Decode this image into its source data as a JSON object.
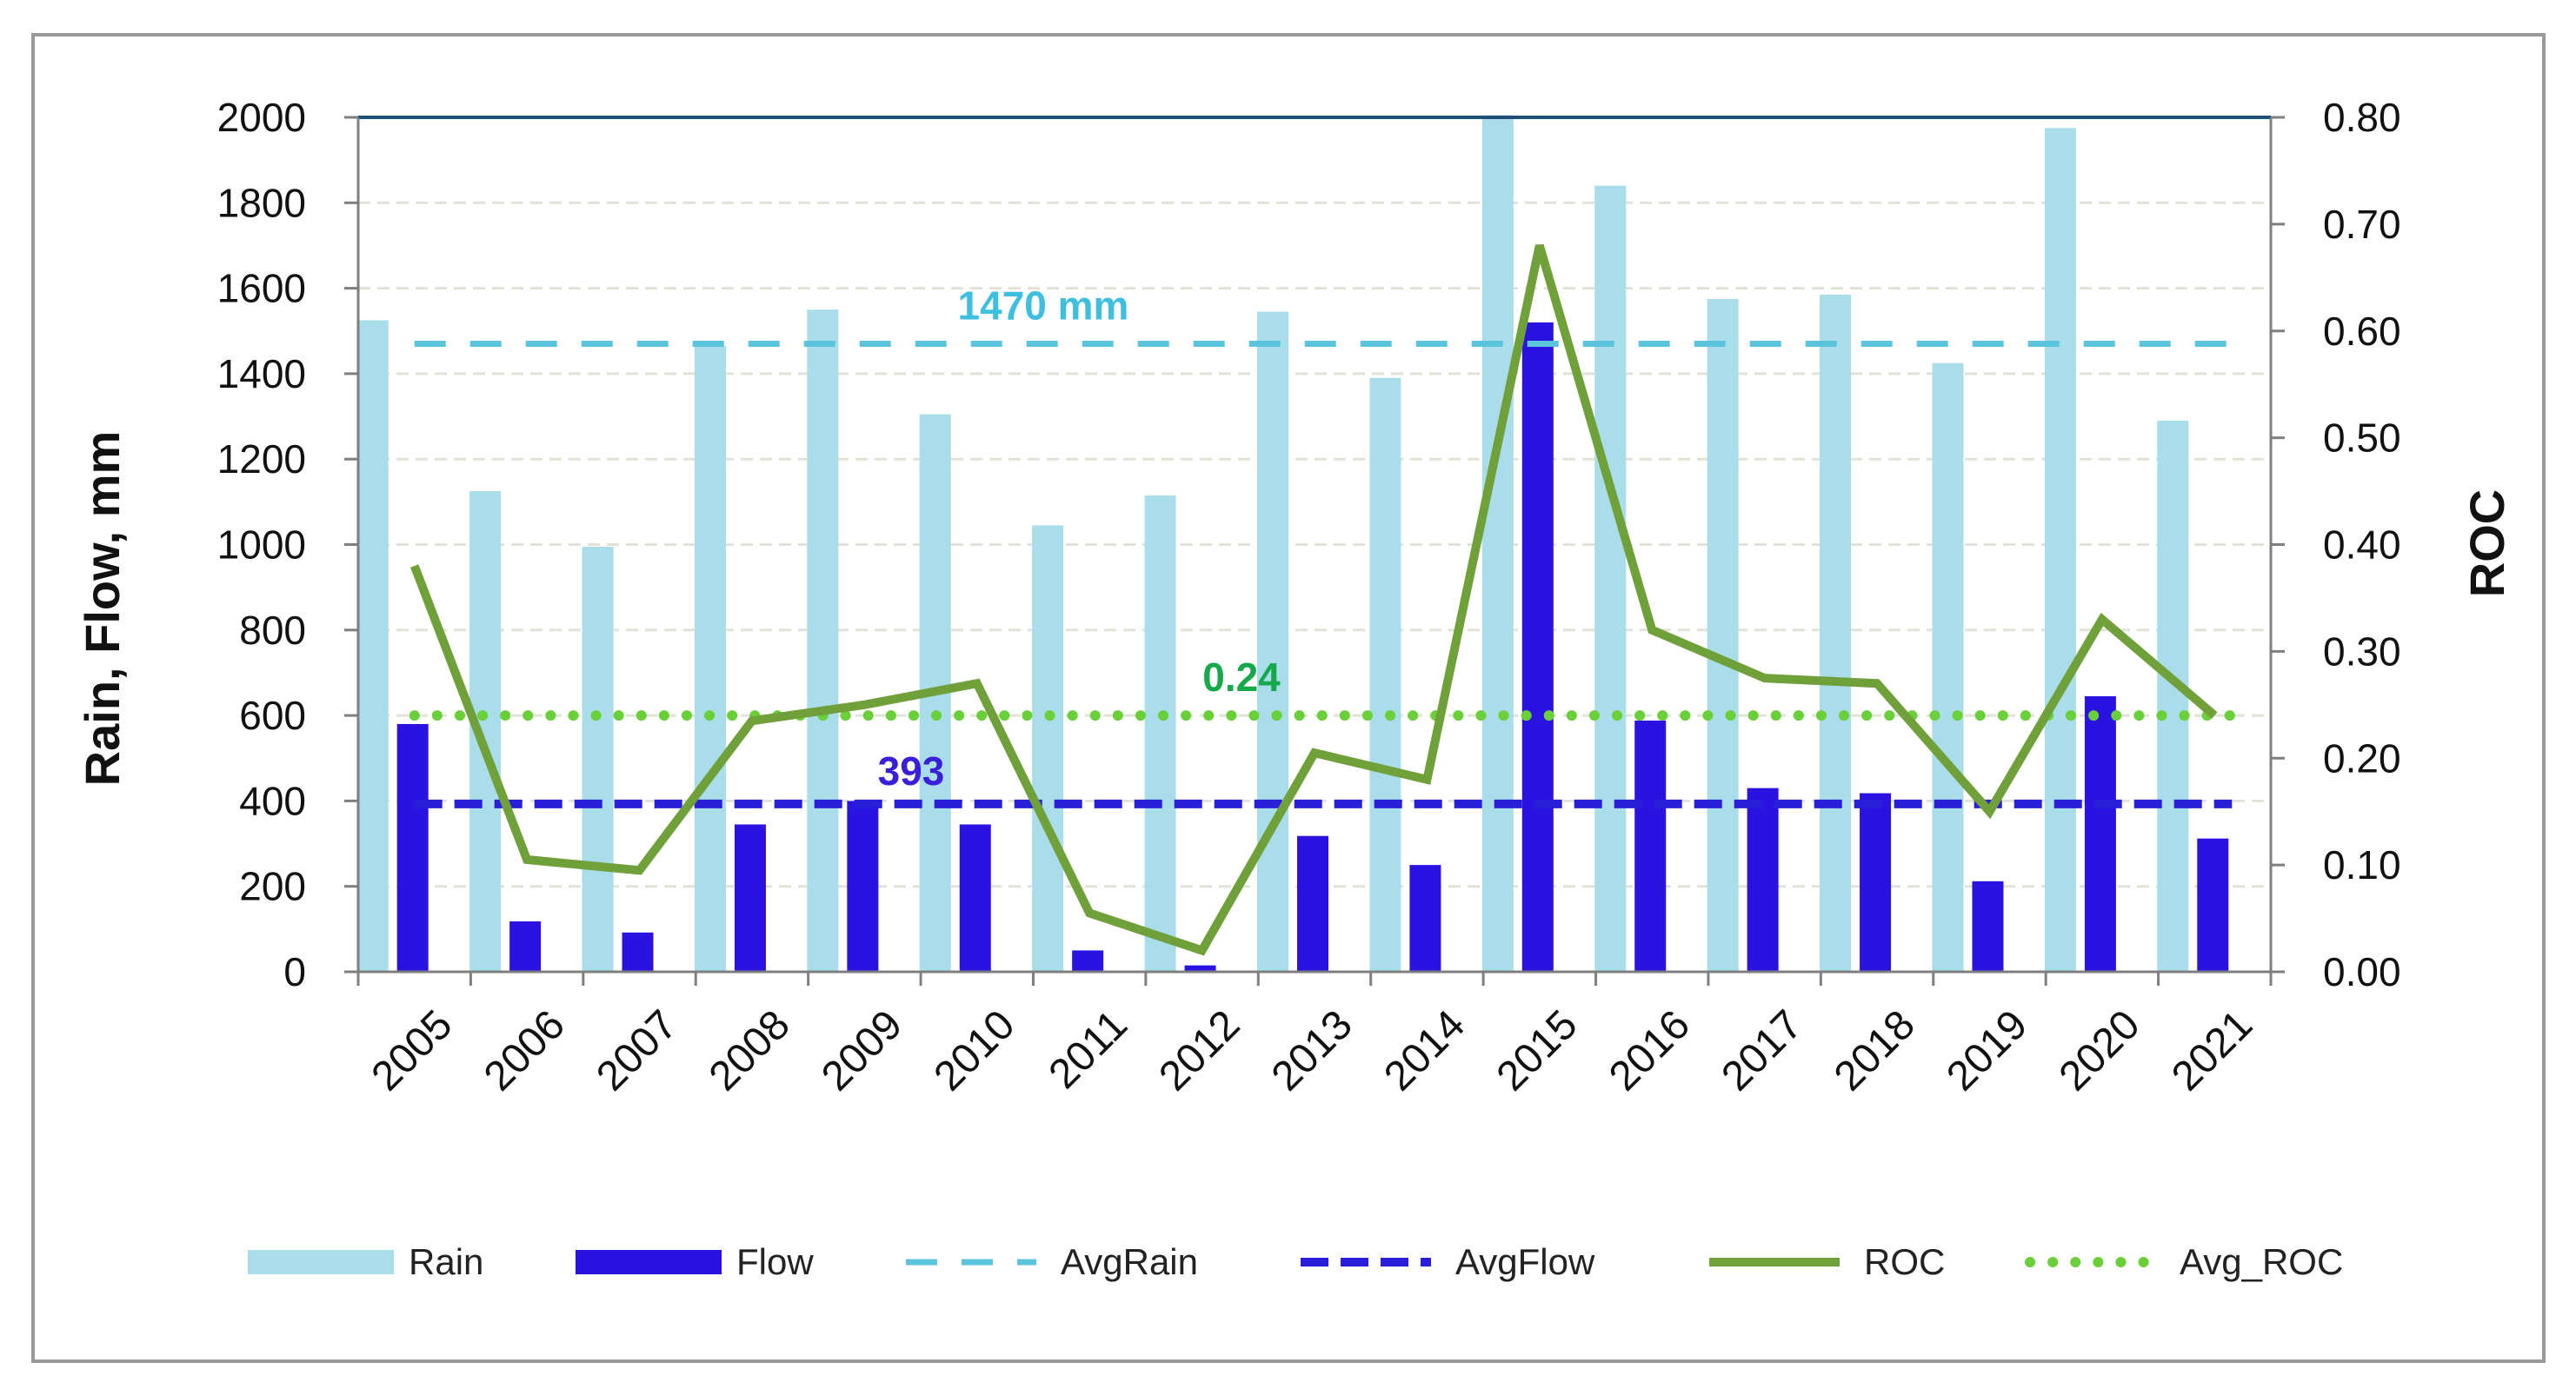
{
  "chart_data": {
    "type": "bar",
    "categories": [
      "2005",
      "2006",
      "2007",
      "2008",
      "2009",
      "2010",
      "2011",
      "2012",
      "2013",
      "2014",
      "2015",
      "2016",
      "2017",
      "2018",
      "2019",
      "2020",
      "2021"
    ],
    "series": [
      {
        "name": "Rain",
        "type": "bar",
        "axis": "left",
        "color": "#a8dde9",
        "values": [
          1525,
          1125,
          995,
          1465,
          1550,
          1305,
          1045,
          1115,
          1545,
          1390,
          2005,
          1840,
          1575,
          1585,
          1425,
          1975,
          1290
        ]
      },
      {
        "name": "Flow",
        "type": "bar",
        "axis": "left",
        "color": "#2a12e0",
        "values": [
          580,
          118,
          92,
          345,
          400,
          345,
          50,
          15,
          318,
          250,
          1520,
          588,
          430,
          418,
          212,
          645,
          312
        ]
      },
      {
        "name": "AvgRain",
        "type": "line",
        "axis": "left",
        "style": "dashed",
        "color": "#5cc3dc",
        "value": 1470
      },
      {
        "name": "AvgFlow",
        "type": "line",
        "axis": "left",
        "style": "dashed",
        "color": "#2a1fd8",
        "value": 393
      },
      {
        "name": "ROC",
        "type": "line",
        "axis": "right",
        "color": "#70a03a",
        "values": [
          0.38,
          0.105,
          0.095,
          0.235,
          0.25,
          0.27,
          0.055,
          0.02,
          0.205,
          0.18,
          0.68,
          0.32,
          0.275,
          0.27,
          0.15,
          0.33,
          0.24
        ]
      },
      {
        "name": "Avg_ROC",
        "type": "line",
        "axis": "right",
        "style": "dotted",
        "color": "#6ad03a",
        "value": 0.24
      }
    ],
    "ylim": [
      0,
      2000
    ],
    "y2lim": [
      0,
      0.8
    ],
    "yticks": [
      "0",
      "200",
      "400",
      "600",
      "800",
      "1000",
      "1200",
      "1400",
      "1600",
      "1800",
      "2000"
    ],
    "y2ticks": [
      "0.00",
      "0.10",
      "0.20",
      "0.30",
      "0.40",
      "0.50",
      "0.60",
      "0.70",
      "0.80"
    ],
    "ylabel": "Rain, Flow, mm",
    "y2label": "ROC",
    "xlabel": "",
    "title": "",
    "grid": true,
    "legend_position": "bottom",
    "annotations": [
      {
        "text": "1470 mm",
        "color": "#3fbfe0",
        "near": "AvgRain"
      },
      {
        "text": "0.24",
        "color": "#16a84a",
        "near": "Avg_ROC"
      },
      {
        "text": "393",
        "color": "#3a1fd8",
        "near": "AvgFlow"
      }
    ]
  }
}
